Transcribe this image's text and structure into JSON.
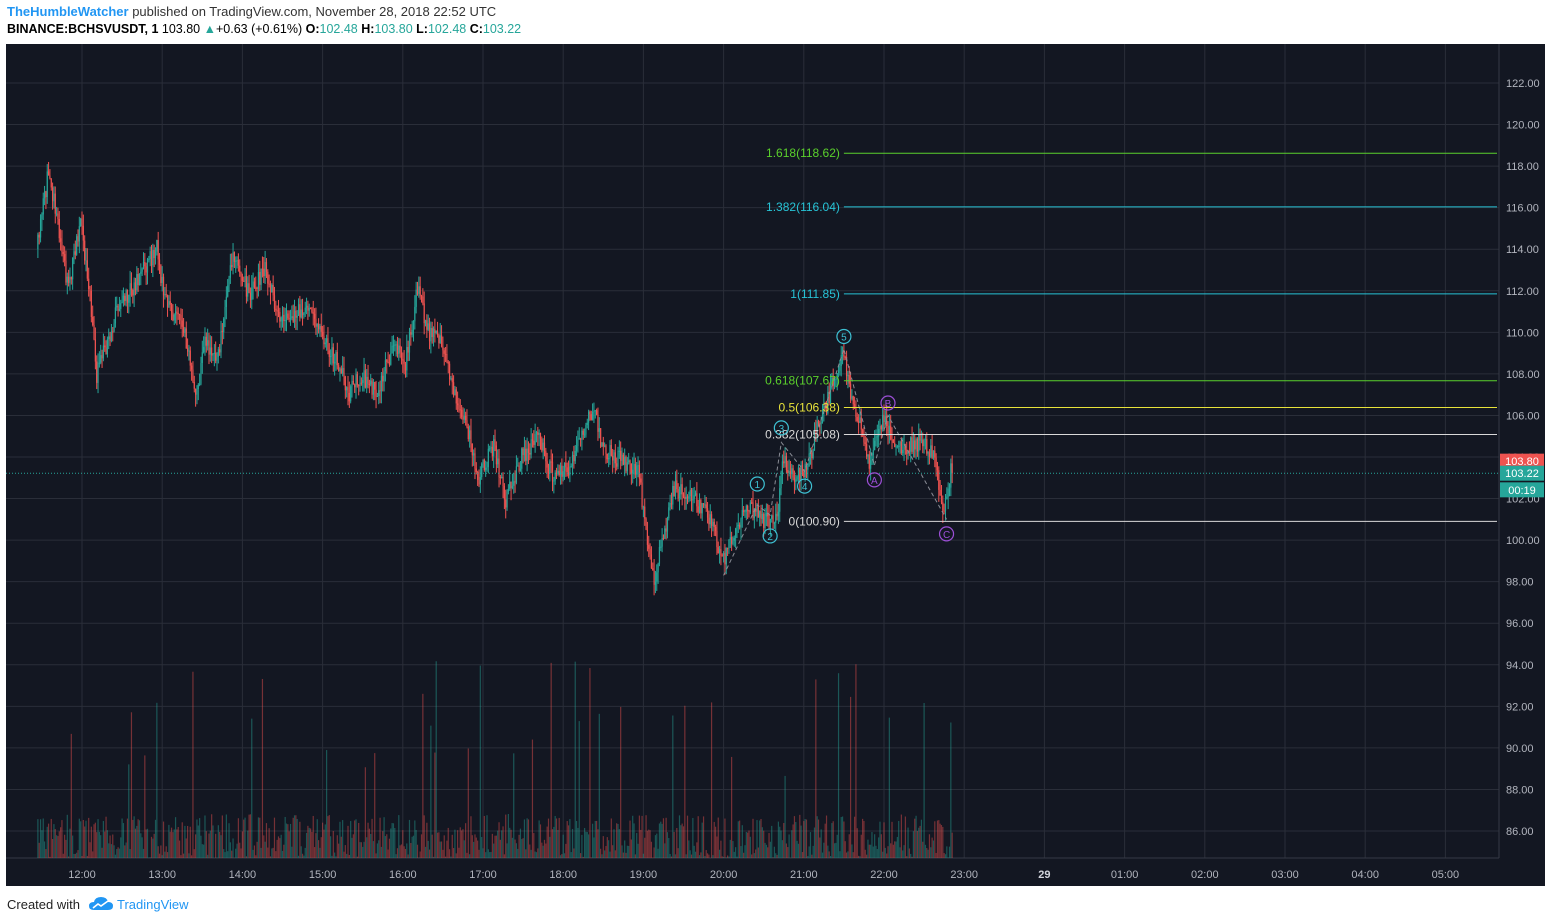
{
  "header": {
    "author": "TheHumbleWatcher",
    "published_text": " published on TradingView.com, November 28, 2018 22:52 UTC",
    "symbol": "BINANCE:BCHSVUSDT, 1",
    "last": "103.80",
    "change": "+0.63 (+0.61%)",
    "o_label": "O:",
    "o_value": "102.48",
    "h_label": "H:",
    "h_value": "103.80",
    "l_label": "L:",
    "l_value": "102.48",
    "c_label": "C:",
    "c_value": "103.22"
  },
  "footer": {
    "created_with": "Created with",
    "brand": "TradingView"
  },
  "colors": {
    "background": "#131722",
    "grid": "#2a2e39",
    "up": "#26a69a",
    "down": "#ef5350",
    "fib_white": "#d9d9d9",
    "fib_cyan": "#27c3d6",
    "fib_green": "#5bd12c",
    "fib_yellow": "#e8e33a",
    "wave_impulse": "#3ec1d3",
    "wave_corrective": "#9c4fd6"
  },
  "chart_data": {
    "type": "candlestick",
    "title": "BINANCE:BCHSVUSDT, 1",
    "x_axis": {
      "tick_labels": [
        "12:00",
        "13:00",
        "14:00",
        "15:00",
        "16:00",
        "17:00",
        "18:00",
        "19:00",
        "20:00",
        "21:00",
        "22:00",
        "23:00",
        "29",
        "01:00",
        "02:00",
        "03:00",
        "04:00",
        "05:00"
      ],
      "start_hour": 11.45,
      "end_hour": 29.9
    },
    "y_axis": {
      "tick_labels": [
        "86.00",
        "88.00",
        "90.00",
        "92.00",
        "94.00",
        "96.00",
        "98.00",
        "100.00",
        "102.00",
        "104.00",
        "106.00",
        "108.00",
        "110.00",
        "112.00",
        "114.00",
        "116.00",
        "118.00",
        "120.00",
        "122.00"
      ],
      "range": [
        84.5,
        123.2
      ],
      "side": "right"
    },
    "price_path": [
      [
        11.45,
        114.0
      ],
      [
        11.6,
        117.8
      ],
      [
        11.85,
        112.0
      ],
      [
        12.0,
        115.5
      ],
      [
        12.15,
        110.5
      ],
      [
        12.2,
        108.0
      ],
      [
        12.45,
        111.0
      ],
      [
        12.7,
        112.5
      ],
      [
        12.95,
        114.0
      ],
      [
        13.05,
        111.5
      ],
      [
        13.3,
        110.0
      ],
      [
        13.45,
        107.0
      ],
      [
        13.55,
        109.5
      ],
      [
        13.7,
        108.5
      ],
      [
        13.9,
        114.0
      ],
      [
        14.1,
        111.8
      ],
      [
        14.3,
        113.0
      ],
      [
        14.5,
        110.5
      ],
      [
        14.85,
        111.5
      ],
      [
        15.0,
        110.0
      ],
      [
        15.2,
        108.5
      ],
      [
        15.35,
        107.0
      ],
      [
        15.5,
        108.0
      ],
      [
        15.7,
        107.0
      ],
      [
        15.9,
        109.5
      ],
      [
        16.05,
        108.5
      ],
      [
        16.2,
        112.0
      ],
      [
        16.35,
        110.0
      ],
      [
        16.5,
        109.5
      ],
      [
        16.65,
        107.0
      ],
      [
        16.85,
        105.0
      ],
      [
        16.95,
        103.0
      ],
      [
        17.15,
        104.5
      ],
      [
        17.3,
        102.0
      ],
      [
        17.5,
        104.0
      ],
      [
        17.7,
        105.0
      ],
      [
        17.9,
        103.0
      ],
      [
        18.1,
        103.5
      ],
      [
        18.3,
        105.5
      ],
      [
        18.4,
        106.5
      ],
      [
        18.5,
        104.5
      ],
      [
        18.65,
        104.0
      ],
      [
        18.95,
        103.5
      ],
      [
        19.05,
        100.5
      ],
      [
        19.15,
        97.8
      ],
      [
        19.25,
        100.0
      ],
      [
        19.4,
        102.5
      ],
      [
        19.6,
        102.0
      ],
      [
        19.8,
        101.5
      ],
      [
        20.0,
        99.0
      ],
      [
        20.2,
        100.5
      ],
      [
        20.3,
        101.5
      ],
      [
        20.45,
        101.2
      ],
      [
        20.6,
        100.8
      ],
      [
        20.7,
        101.2
      ],
      [
        20.75,
        104.0
      ],
      [
        20.9,
        103.0
      ],
      [
        21.05,
        103.5
      ],
      [
        21.2,
        105.5
      ],
      [
        21.3,
        106.5
      ],
      [
        21.4,
        108.0
      ],
      [
        21.5,
        109.2
      ],
      [
        21.55,
        108.0
      ],
      [
        21.65,
        106.0
      ],
      [
        21.75,
        105.2
      ],
      [
        21.85,
        103.6
      ],
      [
        22.0,
        106.0
      ],
      [
        22.15,
        104.5
      ],
      [
        22.35,
        104.6
      ],
      [
        22.5,
        104.8
      ],
      [
        22.65,
        104.0
      ],
      [
        22.75,
        101.1
      ],
      [
        22.85,
        103.3
      ]
    ],
    "volume_scale_max": 10,
    "fib_levels": [
      {
        "label": "0(100.90)",
        "price": 100.9,
        "color": "#d9d9d9"
      },
      {
        "label": "0.382(105.08)",
        "price": 105.08,
        "color": "#d9d9d9"
      },
      {
        "label": "0.5(106.38)",
        "price": 106.38,
        "color": "#e8e33a"
      },
      {
        "label": "0.618(107.67)",
        "price": 107.67,
        "color": "#5bd12c"
      },
      {
        "label": "1(111.85)",
        "price": 111.85,
        "color": "#27c3d6"
      },
      {
        "label": "1.382(116.04)",
        "price": 116.04,
        "color": "#27c3d6"
      },
      {
        "label": "1.618(118.62)",
        "price": 118.62,
        "color": "#5bd12c"
      }
    ],
    "fib_start_hour": 21.5,
    "waves": [
      {
        "label": "1",
        "hour": 20.42,
        "price": 102.7,
        "color": "#3ec1d3"
      },
      {
        "label": "2",
        "hour": 20.58,
        "price": 100.2,
        "color": "#3ec1d3"
      },
      {
        "label": "3",
        "hour": 20.72,
        "price": 105.4,
        "color": "#3ec1d3"
      },
      {
        "label": "4",
        "hour": 21.01,
        "price": 102.6,
        "color": "#3ec1d3"
      },
      {
        "label": "5",
        "hour": 21.5,
        "price": 109.8,
        "color": "#3ec1d3"
      },
      {
        "label": "A",
        "hour": 21.88,
        "price": 102.9,
        "color": "#9c4fd6"
      },
      {
        "label": "B",
        "hour": 22.05,
        "price": 106.6,
        "color": "#9c4fd6"
      },
      {
        "label": "C",
        "hour": 22.78,
        "price": 100.3,
        "color": "#9c4fd6"
      }
    ],
    "wave_path": [
      [
        20.0,
        98.3
      ],
      [
        20.42,
        101.7
      ],
      [
        20.58,
        101.2
      ],
      [
        20.72,
        104.7
      ],
      [
        21.01,
        103.3
      ],
      [
        21.5,
        109.2
      ],
      [
        21.88,
        103.6
      ],
      [
        22.05,
        106.0
      ],
      [
        22.78,
        101.0
      ]
    ],
    "price_labels": [
      {
        "text": "103.80",
        "price": 103.8,
        "bg": "#ef5350"
      },
      {
        "text": "103.22",
        "price": 103.22,
        "bg": "#26a69a"
      },
      {
        "text": "00:19",
        "price": 102.42,
        "bg": "#26a69a"
      }
    ],
    "current_price_line": 103.22
  }
}
